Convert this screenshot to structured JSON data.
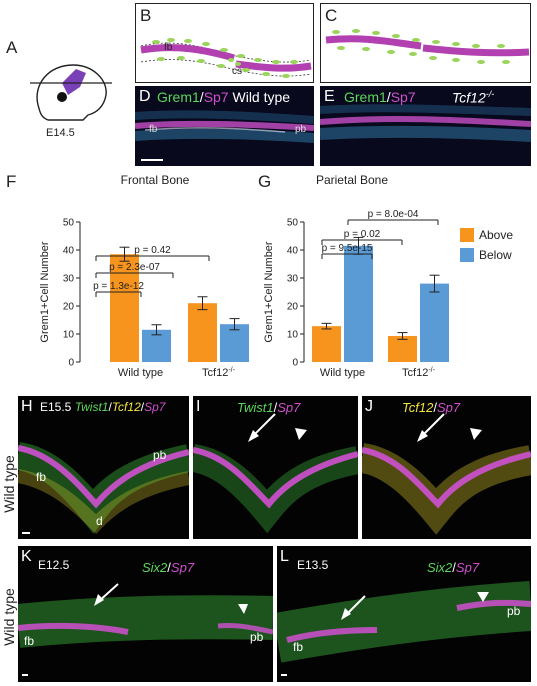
{
  "panels": {
    "A": "A",
    "B": "B",
    "C": "C",
    "D": "D",
    "E": "E",
    "F": "F",
    "G": "G",
    "H": "H",
    "I": "I",
    "J": "J",
    "K": "K",
    "L": "L"
  },
  "panelA": {
    "stage": "E14.5"
  },
  "panelB": {
    "fb": "fb",
    "cs": "cs"
  },
  "panelD": {
    "stain1": "Grem1",
    "sep": "/",
    "stain2": "Sp7",
    "genotype": "Wild type",
    "fb": "fb",
    "pb": "pb"
  },
  "panelE": {
    "stain1": "Grem1",
    "sep": "/",
    "stain2": "Sp7",
    "genotype": "Tcf12",
    "sup": "-/-"
  },
  "legend": {
    "above": "Above",
    "below": "Below",
    "above_color": "#f7941d",
    "below_color": "#5b9bd5"
  },
  "panelH": {
    "stage": "E15.5",
    "g1": "Twist1",
    "g2": "Tcf12",
    "g3": "Sp7",
    "fb": "fb",
    "pb": "pb",
    "d": "d"
  },
  "panelI": {
    "g1": "Twist1",
    "g2": "Sp7"
  },
  "panelJ": {
    "g1": "Tcf12",
    "g2": "Sp7"
  },
  "panelK": {
    "stage": "E12.5",
    "g1": "Six2",
    "g2": "Sp7",
    "fb": "fb",
    "pb": "pb"
  },
  "panelL": {
    "stage": "E13.5",
    "g1": "Six2",
    "g2": "Sp7",
    "fb": "fb",
    "pb": "pb"
  },
  "rowLabels": {
    "row1": "Wild type",
    "row2": "Wild type"
  },
  "chart_data": [
    {
      "type": "bar",
      "title": "Frontal Bone",
      "ylabel": "Grem1+Cell Number",
      "ylim": [
        0,
        50
      ],
      "yticks": [
        0,
        10,
        20,
        30,
        40,
        50
      ],
      "categories": [
        "Wild type",
        "Tcf12-/-"
      ],
      "cat_sup": [
        "",
        "-/-"
      ],
      "cat_base": [
        "Wild type",
        "Tcf12"
      ],
      "series": [
        {
          "name": "Above",
          "values": [
            38.5,
            21.0
          ],
          "errors": [
            2.5,
            2.3
          ],
          "color": "#f7941d"
        },
        {
          "name": "Below",
          "values": [
            11.5,
            13.5
          ],
          "errors": [
            1.8,
            2.0
          ],
          "color": "#5b9bd5"
        }
      ],
      "annotations": [
        "p = 1.3e-12",
        "p = 2.3e-07",
        "p = 0.42"
      ]
    },
    {
      "type": "bar",
      "title": "Parietal Bone",
      "ylabel": "Grem1+Cell Number",
      "ylim": [
        0,
        50
      ],
      "yticks": [
        0,
        10,
        20,
        30,
        40,
        50
      ],
      "categories": [
        "Wild type",
        "Tcf12-/-"
      ],
      "cat_sup": [
        "",
        "-/-"
      ],
      "cat_base": [
        "Wild type",
        "Tcf12"
      ],
      "series": [
        {
          "name": "Above",
          "values": [
            12.8,
            9.3
          ],
          "errors": [
            1.0,
            1.2
          ],
          "color": "#f7941d"
        },
        {
          "name": "Below",
          "values": [
            41.5,
            28.0
          ],
          "errors": [
            3.0,
            3.0
          ],
          "color": "#5b9bd5"
        }
      ],
      "annotations": [
        "p = 9.5e-15",
        "p = 0.02",
        "p = 8.0e-04"
      ]
    }
  ]
}
